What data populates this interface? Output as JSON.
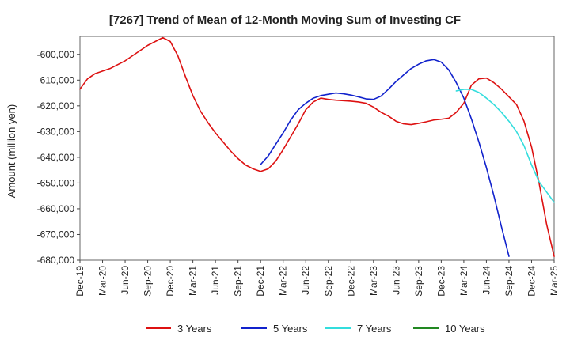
{
  "chart_data": {
    "type": "line",
    "title": "[7267]  Trend of Mean of 12-Month Moving Sum of Investing CF",
    "xlabel": "",
    "ylabel": "Amount (million yen)",
    "ylim": [
      -680000,
      -593000
    ],
    "yticks": [
      -600000,
      -610000,
      -620000,
      -630000,
      -640000,
      -650000,
      -660000,
      -670000,
      -680000
    ],
    "ytick_labels": [
      "-600,000",
      "-610,000",
      "-620,000",
      "-630,000",
      "-640,000",
      "-650,000",
      "-660,000",
      "-670,000",
      "-680,000"
    ],
    "xticks": [
      "Dec-19",
      "Mar-20",
      "Jun-20",
      "Sep-20",
      "Dec-20",
      "Mar-21",
      "Jun-21",
      "Sep-21",
      "Dec-21",
      "Mar-22",
      "Jun-22",
      "Sep-22",
      "Dec-22",
      "Mar-23",
      "Jun-23",
      "Sep-23",
      "Dec-23",
      "Mar-24",
      "Jun-24",
      "Sep-24",
      "Dec-24",
      "Mar-25"
    ],
    "grid": true,
    "legend_position": "bottom",
    "series": [
      {
        "name": "3 Years",
        "color": "#dd1111",
        "start_index": 0,
        "values": [
          -613500,
          -609500,
          -607500,
          -606500,
          -605500,
          -604000,
          -602500,
          -600500,
          -598500,
          -596500,
          -595000,
          -593500,
          -595000,
          -600500,
          -608500,
          -616000,
          -622000,
          -626500,
          -630500,
          -634000,
          -637500,
          -640500,
          -643000,
          -644500,
          -645500,
          -644500,
          -641500,
          -637000,
          -632000,
          -627000,
          -621500,
          -618500,
          -617000,
          -617500,
          -617800,
          -618000,
          -618200,
          -618500,
          -619000,
          -620500,
          -622500,
          -624000,
          -626000,
          -627000,
          -627300,
          -626800,
          -626200,
          -625500,
          -625200,
          -624800,
          -622500,
          -619000,
          -612000,
          -609500,
          -609200,
          -611000,
          -613500,
          -616500,
          -619500,
          -626000,
          -636000,
          -650000,
          -666000,
          -678500
        ]
      },
      {
        "name": "5 Years",
        "color": "#1122cc",
        "start_index": 24,
        "values": [
          -642800,
          -639500,
          -635000,
          -630500,
          -625500,
          -621500,
          -619000,
          -617000,
          -616000,
          -615500,
          -615000,
          -615300,
          -615800,
          -616500,
          -617300,
          -617500,
          -616200,
          -613500,
          -610500,
          -608000,
          -605500,
          -603800,
          -602500,
          -602000,
          -603000,
          -606000,
          -611000,
          -617000,
          -625000,
          -634000,
          -644000,
          -655000,
          -667000,
          -678500
        ]
      },
      {
        "name": "7 Years",
        "color": "#33dddd",
        "start_index": 50,
        "values": [
          -614200,
          -613600,
          -613600,
          -614800,
          -617000,
          -619500,
          -622500,
          -626000,
          -630000,
          -635500,
          -643000,
          -649500,
          -653500,
          -657500
        ]
      },
      {
        "name": "10 Years",
        "color": "#228822",
        "start_index": 0,
        "values": []
      }
    ]
  }
}
